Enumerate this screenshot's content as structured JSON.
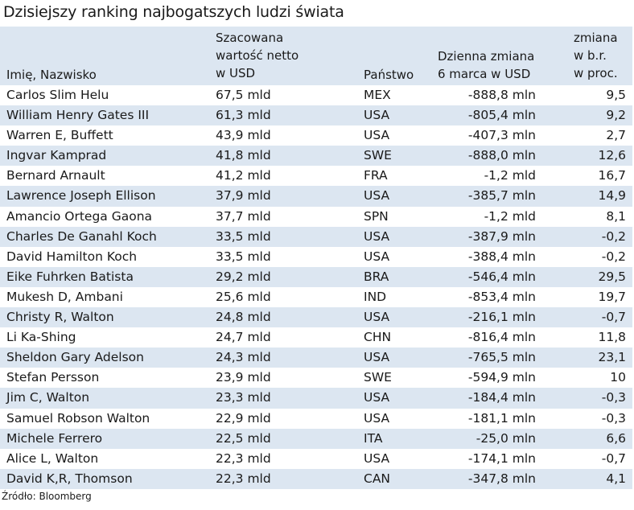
{
  "title": "Dzisiejszy ranking najbogatszych ludzi świata",
  "headers": {
    "name": "Imię, Nazwisko",
    "value_line1": "Szacowana",
    "value_line2": "wartość netto",
    "value_line3": "w USD",
    "country": "Państwo",
    "change_line1": "Dzienna zmiana",
    "change_line2": "6 marca w USD",
    "ytd_line1": "zmiana",
    "ytd_line2": "w b.r.",
    "ytd_line3": "w proc."
  },
  "rows": [
    {
      "name": "Carlos Slim Helu",
      "value": "67,5 mld",
      "country": "MEX",
      "change": "-888,8 mln",
      "ytd": "9,5"
    },
    {
      "name": "William Henry Gates III",
      "value": "61,3 mld",
      "country": "USA",
      "change": "-805,4 mln",
      "ytd": "9,2"
    },
    {
      "name": "Warren E, Buffett",
      "value": "43,9 mld",
      "country": "USA",
      "change": "-407,3 mln",
      "ytd": "2,7"
    },
    {
      "name": "Ingvar Kamprad",
      "value": "41,8 mld",
      "country": "SWE",
      "change": "-888,0 mln",
      "ytd": "12,6"
    },
    {
      "name": "Bernard Arnault",
      "value": "41,2 mld",
      "country": "FRA",
      "change": "-1,2 mld",
      "ytd": "16,7"
    },
    {
      "name": "Lawrence Joseph Ellison",
      "value": "37,9 mld",
      "country": "USA",
      "change": "-385,7 mln",
      "ytd": "14,9"
    },
    {
      "name": "Amancio Ortega Gaona",
      "value": "37,7 mld",
      "country": "SPN",
      "change": "-1,2 mld",
      "ytd": "8,1"
    },
    {
      "name": "Charles De Ganahl Koch",
      "value": "33,5 mld",
      "country": "USA",
      "change": "-387,9 mln",
      "ytd": "-0,2"
    },
    {
      "name": "David Hamilton Koch",
      "value": "33,5 mld",
      "country": "USA",
      "change": "-388,4 mln",
      "ytd": "-0,2"
    },
    {
      "name": "Eike Fuhrken Batista",
      "value": "29,2 mld",
      "country": "BRA",
      "change": "-546,4 mln",
      "ytd": "29,5"
    },
    {
      "name": "Mukesh D, Ambani",
      "value": "25,6 mld",
      "country": "IND",
      "change": "-853,4 mln",
      "ytd": "19,7"
    },
    {
      "name": "Christy R, Walton",
      "value": "24,8 mld",
      "country": "USA",
      "change": "-216,1 mln",
      "ytd": "-0,7"
    },
    {
      "name": "Li Ka-Shing",
      "value": "24,7 mld",
      "country": "CHN",
      "change": "-816,4 mln",
      "ytd": "11,8"
    },
    {
      "name": "Sheldon Gary Adelson",
      "value": "24,3 mld",
      "country": "USA",
      "change": "-765,5 mln",
      "ytd": "23,1"
    },
    {
      "name": "Stefan Persson",
      "value": "23,9 mld",
      "country": "SWE",
      "change": "-594,9 mln",
      "ytd": "10"
    },
    {
      "name": "Jim C, Walton",
      "value": "23,3 mld",
      "country": "USA",
      "change": "-184,4 mln",
      "ytd": "-0,3"
    },
    {
      "name": "Samuel Robson Walton",
      "value": "22,9 mld",
      "country": "USA",
      "change": "-181,1 mln",
      "ytd": "-0,3"
    },
    {
      "name": "Michele Ferrero",
      "value": "22,5 mld",
      "country": "ITA",
      "change": "-25,0 mln",
      "ytd": "6,6"
    },
    {
      "name": "Alice L, Walton",
      "value": "22,3 mld",
      "country": "USA",
      "change": "-174,1 mln",
      "ytd": "-0,7"
    },
    {
      "name": "David K,R, Thomson",
      "value": "22,3 mld",
      "country": "CAN",
      "change": "-347,8 mln",
      "ytd": "4,1"
    }
  ],
  "source": "Źródło: Bloomberg",
  "colors": {
    "shade": "#dce6f1"
  }
}
